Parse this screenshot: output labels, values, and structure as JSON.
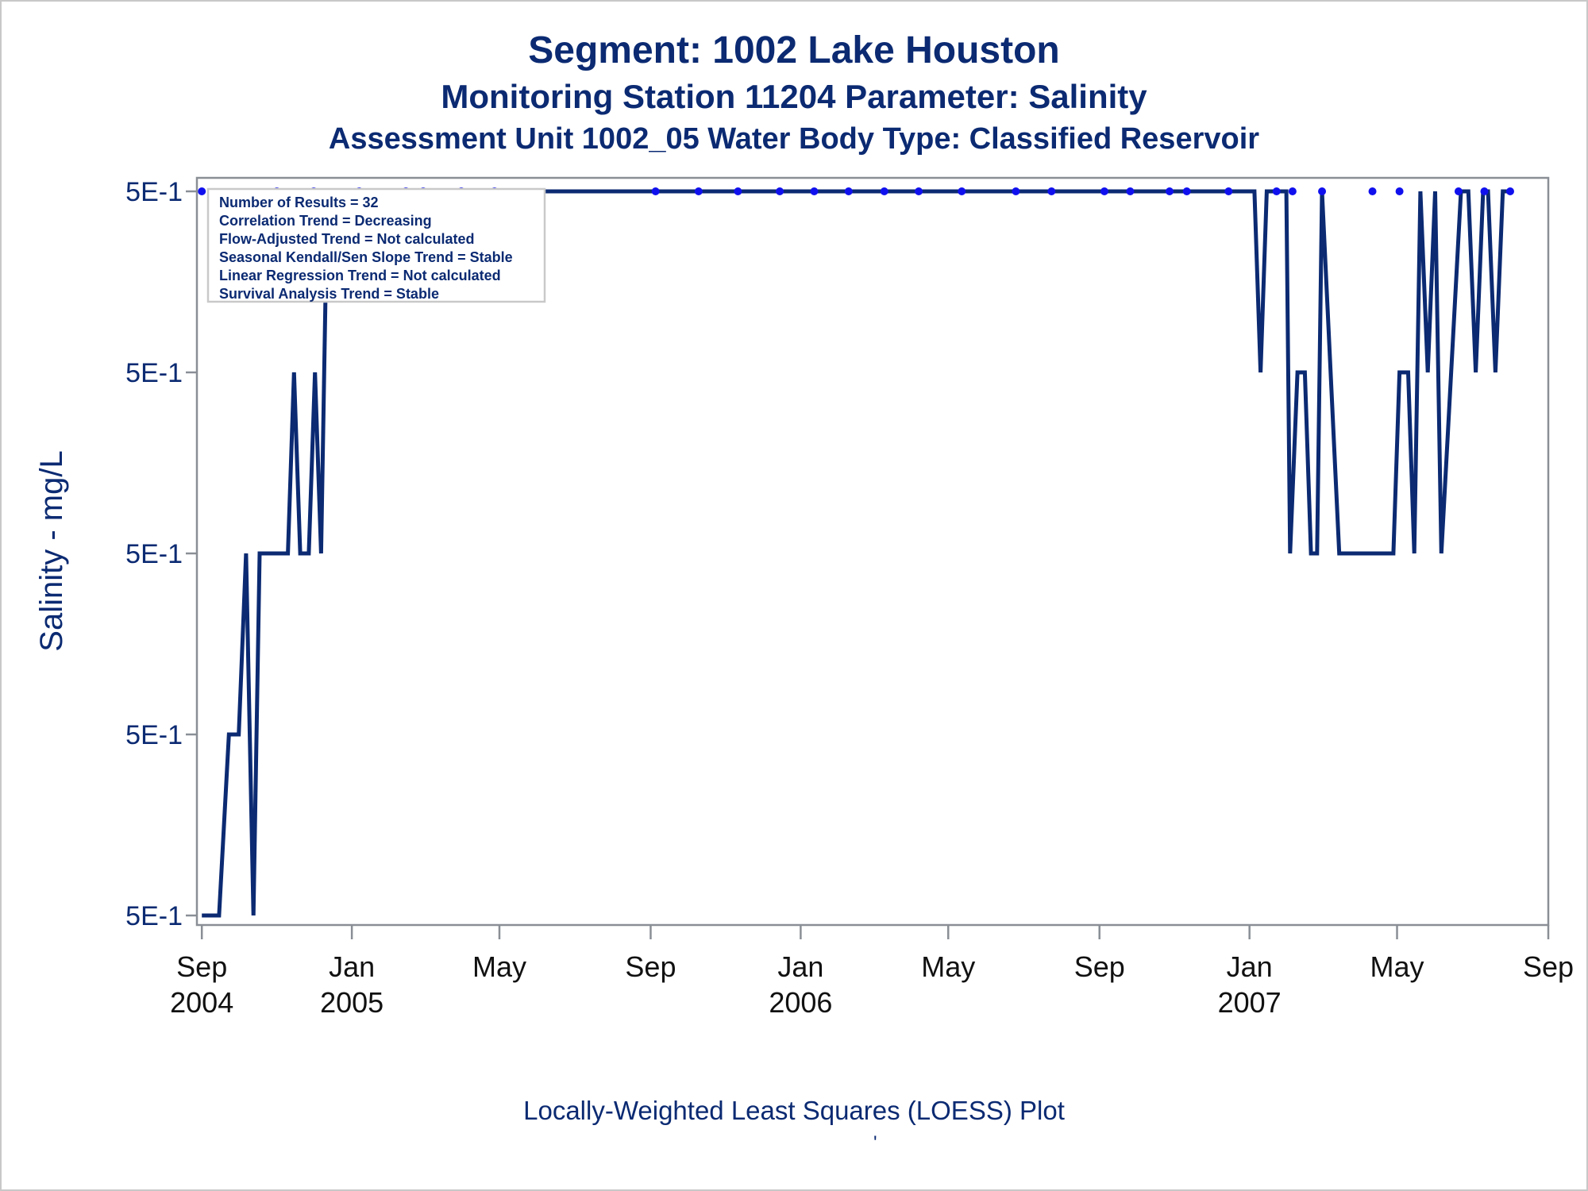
{
  "titles": {
    "line1": "Segment: 1002  Lake Houston",
    "line2": "Monitoring Station 11204 Parameter: Salinity",
    "line3": "Assessment Unit 1002_05   Water Body Type: Classified Reservoir"
  },
  "footnote": "Locally-Weighted Least Squares (LOESS) Plot",
  "footnote_mark": "'",
  "stats_box": [
    "Number of Results = 32",
    "Correlation Trend = Decreasing",
    "Flow-Adjusted Trend = Not calculated",
    "Seasonal Kendall/Sen Slope Trend = Stable",
    "Linear Regression Trend = Not calculated",
    "Survival Analysis Trend = Stable"
  ],
  "colors": {
    "text": "#0b2a72",
    "line": "#0b2a72",
    "points": "#1010ee",
    "axis": "#8a8f96"
  },
  "chart_data": {
    "type": "line",
    "ylabel": "Salinity - mg/L",
    "xlabel": "",
    "y_tick_labels": [
      "5E-1",
      "5E-1",
      "5E-1",
      "5E-1",
      "5E-1"
    ],
    "x_ticks": [
      {
        "date": "2004-09-01",
        "label1": "Sep",
        "label2": "2004"
      },
      {
        "date": "2005-01-01",
        "label1": "Jan",
        "label2": "2005"
      },
      {
        "date": "2005-05-01",
        "label1": "May",
        "label2": ""
      },
      {
        "date": "2005-09-01",
        "label1": "Sep",
        "label2": ""
      },
      {
        "date": "2006-01-01",
        "label1": "Jan",
        "label2": "2006"
      },
      {
        "date": "2006-05-01",
        "label1": "May",
        "label2": ""
      },
      {
        "date": "2006-09-01",
        "label1": "Sep",
        "label2": ""
      },
      {
        "date": "2007-01-01",
        "label1": "Jan",
        "label2": "2007"
      },
      {
        "date": "2007-05-01",
        "label1": "May",
        "label2": ""
      },
      {
        "date": "2007-09-01",
        "label1": "Sep",
        "label2": ""
      }
    ],
    "x_range": [
      "2004-08-28",
      "2007-09-01"
    ],
    "y_level_range": [
      0,
      4
    ],
    "series": [
      {
        "type": "scatter",
        "points": [
          [
            "2004-09-01",
            4
          ],
          [
            "2004-11-01",
            4
          ],
          [
            "2004-12-01",
            4
          ],
          [
            "2005-01-07",
            4
          ],
          [
            "2005-02-14",
            4
          ],
          [
            "2005-02-28",
            4
          ],
          [
            "2005-03-31",
            4
          ],
          [
            "2005-04-27",
            4
          ],
          [
            "2005-09-05",
            4
          ],
          [
            "2005-10-10",
            4
          ],
          [
            "2005-11-11",
            4
          ],
          [
            "2005-12-15",
            4
          ],
          [
            "2006-01-12",
            4
          ],
          [
            "2006-02-09",
            4
          ],
          [
            "2006-03-10",
            4
          ],
          [
            "2006-04-07",
            4
          ],
          [
            "2006-05-12",
            4
          ],
          [
            "2006-06-25",
            4
          ],
          [
            "2006-07-24",
            4
          ],
          [
            "2006-09-05",
            4
          ],
          [
            "2006-09-26",
            4
          ],
          [
            "2006-10-28",
            4
          ],
          [
            "2006-11-11",
            4
          ],
          [
            "2006-12-15",
            4
          ],
          [
            "2007-01-23",
            4
          ],
          [
            "2007-02-05",
            4
          ],
          [
            "2007-03-01",
            4
          ],
          [
            "2007-04-11",
            4
          ],
          [
            "2007-05-03",
            4
          ],
          [
            "2007-06-20",
            4
          ],
          [
            "2007-07-11",
            4
          ],
          [
            "2007-08-01",
            4
          ]
        ]
      },
      {
        "type": "line",
        "points": [
          [
            "2004-09-01",
            0
          ],
          [
            "2004-09-15",
            0
          ],
          [
            "2004-09-23",
            1
          ],
          [
            "2004-10-01",
            1
          ],
          [
            "2004-10-07",
            2
          ],
          [
            "2004-10-13",
            0
          ],
          [
            "2004-10-18",
            2
          ],
          [
            "2004-11-10",
            2
          ],
          [
            "2004-11-15",
            3
          ],
          [
            "2004-11-20",
            2
          ],
          [
            "2004-11-27",
            2
          ],
          [
            "2004-12-02",
            3
          ],
          [
            "2004-12-07",
            2
          ],
          [
            "2004-12-12",
            4
          ],
          [
            "2007-01-05",
            4
          ],
          [
            "2007-01-10",
            3
          ],
          [
            "2007-01-15",
            4
          ],
          [
            "2007-01-31",
            4
          ],
          [
            "2007-02-03",
            2
          ],
          [
            "2007-02-09",
            3
          ],
          [
            "2007-02-15",
            3
          ],
          [
            "2007-02-20",
            2
          ],
          [
            "2007-02-25",
            2
          ],
          [
            "2007-03-01",
            4
          ],
          [
            "2007-03-15",
            2
          ],
          [
            "2007-04-28",
            2
          ],
          [
            "2007-05-03",
            3
          ],
          [
            "2007-05-10",
            3
          ],
          [
            "2007-05-15",
            2
          ],
          [
            "2007-05-20",
            4
          ],
          [
            "2007-05-26",
            3
          ],
          [
            "2007-06-01",
            4
          ],
          [
            "2007-06-06",
            2
          ],
          [
            "2007-06-22",
            4
          ],
          [
            "2007-06-28",
            4
          ],
          [
            "2007-07-04",
            3
          ],
          [
            "2007-07-10",
            4
          ],
          [
            "2007-07-14",
            4
          ],
          [
            "2007-07-20",
            3
          ],
          [
            "2007-07-26",
            4
          ],
          [
            "2007-08-01",
            4
          ]
        ]
      }
    ]
  }
}
